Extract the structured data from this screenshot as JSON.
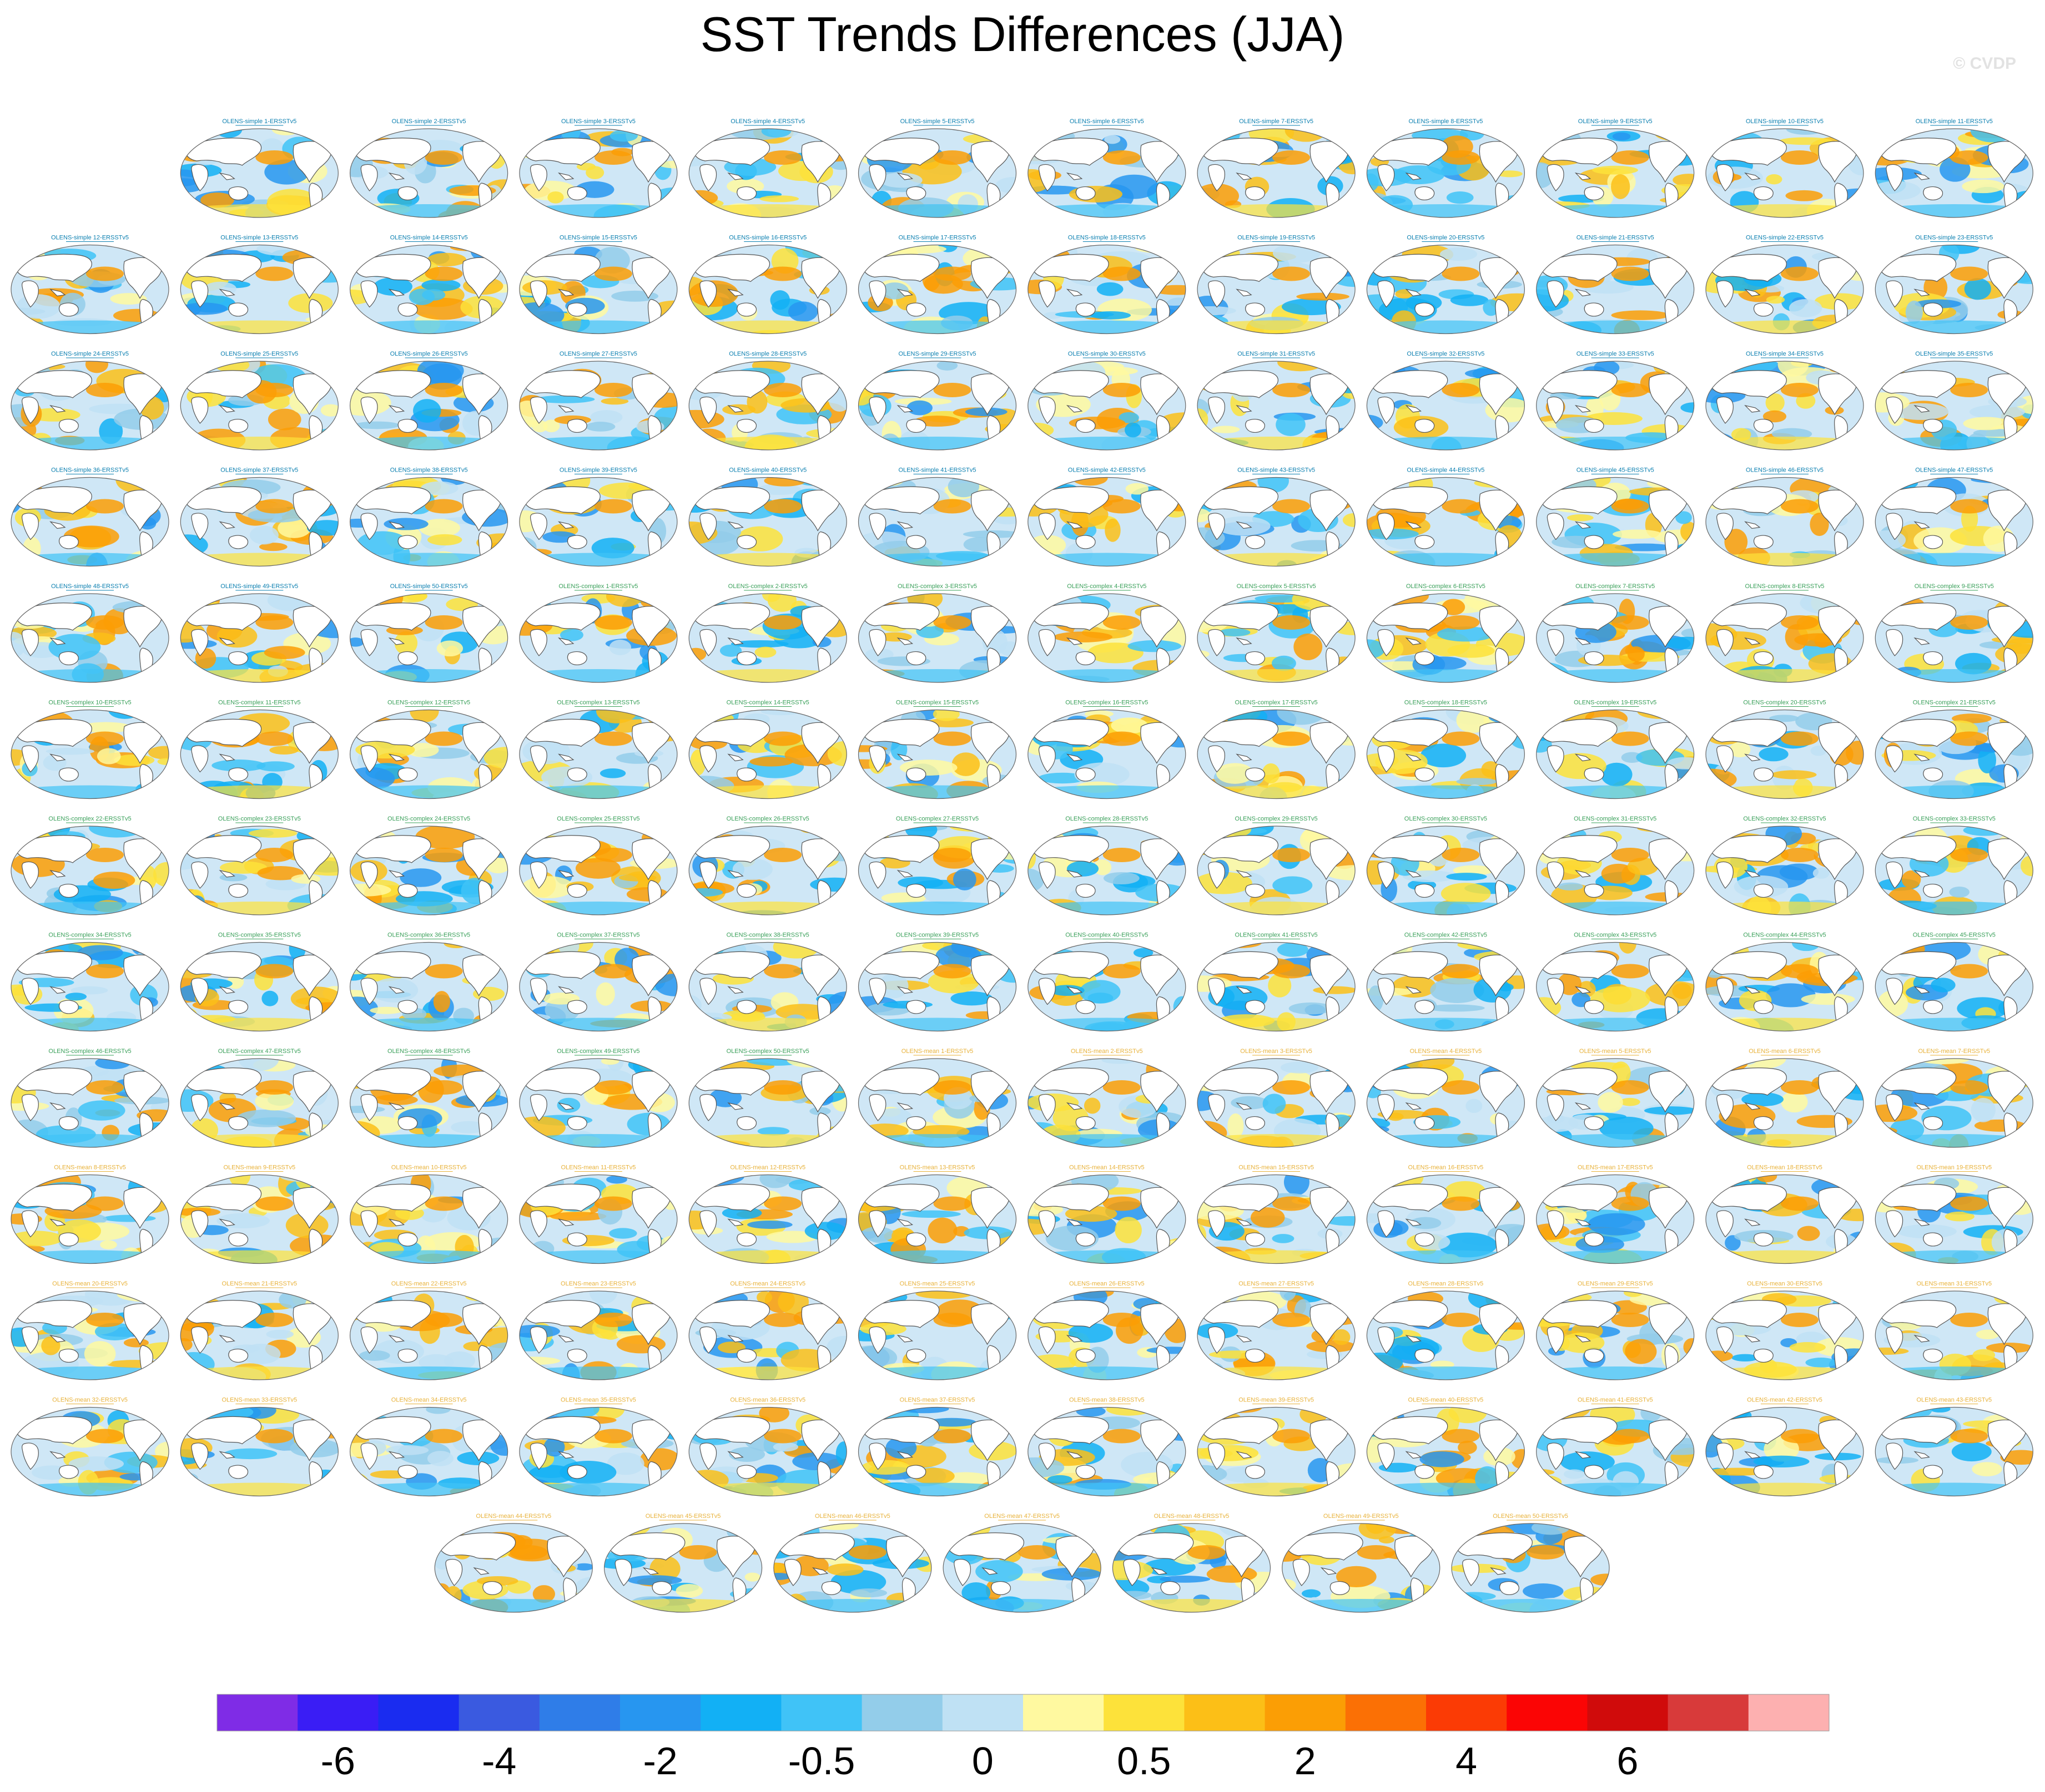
{
  "figure": {
    "title": "SST Trends Differences (JJA)",
    "watermark": "© CVDP"
  },
  "chart_data": {
    "type": "heatmap",
    "projection": "Robinson global map",
    "panel_count": 150,
    "panel_rows": [
      11,
      12,
      12,
      12,
      12,
      12,
      12,
      12,
      12,
      12,
      12,
      12,
      7
    ],
    "first_row_offset_columns": 1,
    "panel_labels": [
      "OLENS-simple 1-ERSSTv5",
      "OLENS-simple 2-ERSSTv5",
      "OLENS-simple 3-ERSSTv5",
      "OLENS-simple 4-ERSSTv5",
      "OLENS-simple 5-ERSSTv5",
      "OLENS-simple 6-ERSSTv5",
      "OLENS-simple 7-ERSSTv5",
      "OLENS-simple 8-ERSSTv5",
      "OLENS-simple 9-ERSSTv5",
      "OLENS-simple 10-ERSSTv5",
      "OLENS-simple 11-ERSSTv5",
      "OLENS-simple 12-ERSSTv5",
      "OLENS-simple 13-ERSSTv5",
      "OLENS-simple 14-ERSSTv5",
      "OLENS-simple 15-ERSSTv5",
      "OLENS-simple 16-ERSSTv5",
      "OLENS-simple 17-ERSSTv5",
      "OLENS-simple 18-ERSSTv5",
      "OLENS-simple 19-ERSSTv5",
      "OLENS-simple 20-ERSSTv5",
      "OLENS-simple 21-ERSSTv5",
      "OLENS-simple 22-ERSSTv5",
      "OLENS-simple 23-ERSSTv5",
      "OLENS-simple 24-ERSSTv5",
      "OLENS-simple 25-ERSSTv5",
      "OLENS-simple 26-ERSSTv5",
      "OLENS-simple 27-ERSSTv5",
      "OLENS-simple 28-ERSSTv5",
      "OLENS-simple 29-ERSSTv5",
      "OLENS-simple 30-ERSSTv5",
      "OLENS-simple 31-ERSSTv5",
      "OLENS-simple 32-ERSSTv5",
      "OLENS-simple 33-ERSSTv5",
      "OLENS-simple 34-ERSSTv5",
      "OLENS-simple 35-ERSSTv5",
      "OLENS-simple 36-ERSSTv5",
      "OLENS-simple 37-ERSSTv5",
      "OLENS-simple 38-ERSSTv5",
      "OLENS-simple 39-ERSSTv5",
      "OLENS-simple 40-ERSSTv5",
      "OLENS-simple 41-ERSSTv5",
      "OLENS-simple 42-ERSSTv5",
      "OLENS-simple 43-ERSSTv5",
      "OLENS-simple 44-ERSSTv5",
      "OLENS-simple 45-ERSSTv5",
      "OLENS-simple 46-ERSSTv5",
      "OLENS-simple 47-ERSSTv5",
      "OLENS-simple 48-ERSSTv5",
      "OLENS-simple 49-ERSSTv5",
      "OLENS-simple 50-ERSSTv5",
      "OLENS-complex 1-ERSSTv5",
      "OLENS-complex 2-ERSSTv5",
      "OLENS-complex 3-ERSSTv5",
      "OLENS-complex 4-ERSSTv5",
      "OLENS-complex 5-ERSSTv5",
      "OLENS-complex 6-ERSSTv5",
      "OLENS-complex 7-ERSSTv5",
      "OLENS-complex 8-ERSSTv5",
      "OLENS-complex 9-ERSSTv5",
      "OLENS-complex 10-ERSSTv5",
      "OLENS-complex 11-ERSSTv5",
      "OLENS-complex 12-ERSSTv5",
      "OLENS-complex 13-ERSSTv5",
      "OLENS-complex 14-ERSSTv5",
      "OLENS-complex 15-ERSSTv5",
      "OLENS-complex 16-ERSSTv5",
      "OLENS-complex 17-ERSSTv5",
      "OLENS-complex 18-ERSSTv5",
      "OLENS-complex 19-ERSSTv5",
      "OLENS-complex 20-ERSSTv5",
      "OLENS-complex 21-ERSSTv5",
      "OLENS-complex 22-ERSSTv5",
      "OLENS-complex 23-ERSSTv5",
      "OLENS-complex 24-ERSSTv5",
      "OLENS-complex 25-ERSSTv5",
      "OLENS-complex 26-ERSSTv5",
      "OLENS-complex 27-ERSSTv5",
      "OLENS-complex 28-ERSSTv5",
      "OLENS-complex 29-ERSSTv5",
      "OLENS-complex 30-ERSSTv5",
      "OLENS-complex 31-ERSSTv5",
      "OLENS-complex 32-ERSSTv5",
      "OLENS-complex 33-ERSSTv5",
      "OLENS-complex 34-ERSSTv5",
      "OLENS-complex 35-ERSSTv5",
      "OLENS-complex 36-ERSSTv5",
      "OLENS-complex 37-ERSSTv5",
      "OLENS-complex 38-ERSSTv5",
      "OLENS-complex 39-ERSSTv5",
      "OLENS-complex 40-ERSSTv5",
      "OLENS-complex 41-ERSSTv5",
      "OLENS-complex 42-ERSSTv5",
      "OLENS-complex 43-ERSSTv5",
      "OLENS-complex 44-ERSSTv5",
      "OLENS-complex 45-ERSSTv5",
      "OLENS-complex 46-ERSSTv5",
      "OLENS-complex 47-ERSSTv5",
      "OLENS-complex 48-ERSSTv5",
      "OLENS-complex 49-ERSSTv5",
      "OLENS-complex 50-ERSSTv5",
      "OLENS-mean 1-ERSSTv5",
      "OLENS-mean 2-ERSSTv5",
      "OLENS-mean 3-ERSSTv5",
      "OLENS-mean 4-ERSSTv5",
      "OLENS-mean 5-ERSSTv5",
      "OLENS-mean 6-ERSSTv5",
      "OLENS-mean 7-ERSSTv5",
      "OLENS-mean 8-ERSSTv5",
      "OLENS-mean 9-ERSSTv5",
      "OLENS-mean 10-ERSSTv5",
      "OLENS-mean 11-ERSSTv5",
      "OLENS-mean 12-ERSSTv5",
      "OLENS-mean 13-ERSSTv5",
      "OLENS-mean 14-ERSSTv5",
      "OLENS-mean 15-ERSSTv5",
      "OLENS-mean 16-ERSSTv5",
      "OLENS-mean 17-ERSSTv5",
      "OLENS-mean 18-ERSSTv5",
      "OLENS-mean 19-ERSSTv5",
      "OLENS-mean 20-ERSSTv5",
      "OLENS-mean 21-ERSSTv5",
      "OLENS-mean 22-ERSSTv5",
      "OLENS-mean 23-ERSSTv5",
      "OLENS-mean 24-ERSSTv5",
      "OLENS-mean 25-ERSSTv5",
      "OLENS-mean 26-ERSSTv5",
      "OLENS-mean 27-ERSSTv5",
      "OLENS-mean 28-ERSSTv5",
      "OLENS-mean 29-ERSSTv5",
      "OLENS-mean 30-ERSSTv5",
      "OLENS-mean 31-ERSSTv5",
      "OLENS-mean 32-ERSSTv5",
      "OLENS-mean 33-ERSSTv5",
      "OLENS-mean 34-ERSSTv5",
      "OLENS-mean 35-ERSSTv5",
      "OLENS-mean 36-ERSSTv5",
      "OLENS-mean 37-ERSSTv5",
      "OLENS-mean 38-ERSSTv5",
      "OLENS-mean 39-ERSSTv5",
      "OLENS-mean 40-ERSSTv5",
      "OLENS-mean 41-ERSSTv5",
      "OLENS-mean 42-ERSSTv5",
      "OLENS-mean 43-ERSSTv5",
      "OLENS-mean 44-ERSSTv5",
      "OLENS-mean 45-ERSSTv5",
      "OLENS-mean 46-ERSSTv5",
      "OLENS-mean 47-ERSSTv5",
      "OLENS-mean 48-ERSSTv5",
      "OLENS-mean 49-ERSSTv5",
      "OLENS-mean 50-ERSSTv5"
    ],
    "label_colors": {
      "OLENS-simple": "#0a7fb0",
      "OLENS-complex": "#3aa05a",
      "OLENS-mean": "#e8b23a"
    },
    "colorbar": {
      "colors": [
        "#7f2ce6",
        "#3a1df5",
        "#1a2cf0",
        "#3a5ae0",
        "#2f7de8",
        "#2796f0",
        "#12b0f5",
        "#40c3f7",
        "#93cdea",
        "#bfe1f4",
        "#fff9a0",
        "#fde23a",
        "#fcbf17",
        "#fb9e05",
        "#fb7005",
        "#fb3b05",
        "#fb0505",
        "#d00b0b",
        "#d83a3a",
        "#fdb0b0"
      ],
      "tick_labels": [
        "-6",
        "-4",
        "-2",
        "-0.5",
        "0",
        "0.5",
        "2",
        "4",
        "6"
      ],
      "tick_boundaries": [
        2,
        4,
        6,
        8,
        10,
        12,
        14,
        16,
        18
      ]
    },
    "ocean_pattern": "mostly pale blue and pale yellow, orange in the North Pacific, darker blue in the Southern Ocean and Indian Ocean"
  }
}
